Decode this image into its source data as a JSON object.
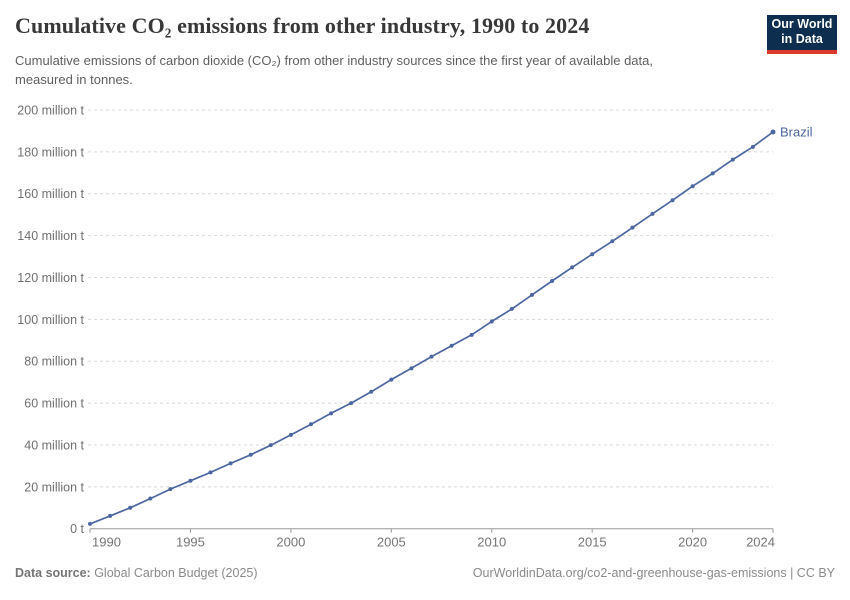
{
  "header": {
    "title": "Cumulative CO₂ emissions from other industry, 1990 to 2024",
    "logo": {
      "line1": "Our World",
      "line2": "in Data"
    }
  },
  "subtitle": {
    "line1": "Cumulative emissions of carbon dioxide (CO₂) from other industry sources since the first year of available data,",
    "line2": "measured in tonnes."
  },
  "chart_data": {
    "type": "line",
    "title": "Cumulative CO₂ emissions from other industry, 1990 to 2024",
    "xlabel": "",
    "ylabel": "",
    "entity_label": "Brazil",
    "line_color": "#4c669f",
    "grid": true,
    "legend_position": "end-of-line",
    "ylim": [
      0,
      200
    ],
    "ytick_step": 20,
    "ytick_label_suffix": " million t",
    "ytick_zero_label": "0 t",
    "xticks": [
      1990,
      1995,
      2000,
      2005,
      2010,
      2015,
      2020,
      2024
    ],
    "x": [
      1990,
      1991,
      1992,
      1993,
      1994,
      1995,
      1996,
      1997,
      1998,
      1999,
      2000,
      2001,
      2002,
      2003,
      2004,
      2005,
      2006,
      2007,
      2008,
      2009,
      2010,
      2011,
      2012,
      2013,
      2014,
      2015,
      2016,
      2017,
      2018,
      2019,
      2020,
      2021,
      2022,
      2023,
      2024
    ],
    "values": [
      2.3,
      6.1,
      10.0,
      14.4,
      18.9,
      22.9,
      26.9,
      31.2,
      35.3,
      39.9,
      44.8,
      49.9,
      55.1,
      60.0,
      65.4,
      71.2,
      76.6,
      82.2,
      87.4,
      92.6,
      99.0,
      105.0,
      111.7,
      118.3,
      124.8,
      131.1,
      137.3,
      143.8,
      150.4,
      156.9,
      163.6,
      169.7,
      176.3,
      182.4,
      189.5
    ]
  },
  "footer": {
    "datasource_label": "Data source:",
    "datasource_value": " Global Carbon Budget (2025)",
    "link": "OurWorldinData.org/co2-and-greenhouse-gas-emissions | CC BY"
  },
  "colors": {
    "line": "#4c669f",
    "grid": "#d8d8d8",
    "axis": "#9a9a9a",
    "tick_label": "#707070",
    "logo_bg": "#0d2e4e",
    "logo_stripe": "#dc3a2d"
  }
}
